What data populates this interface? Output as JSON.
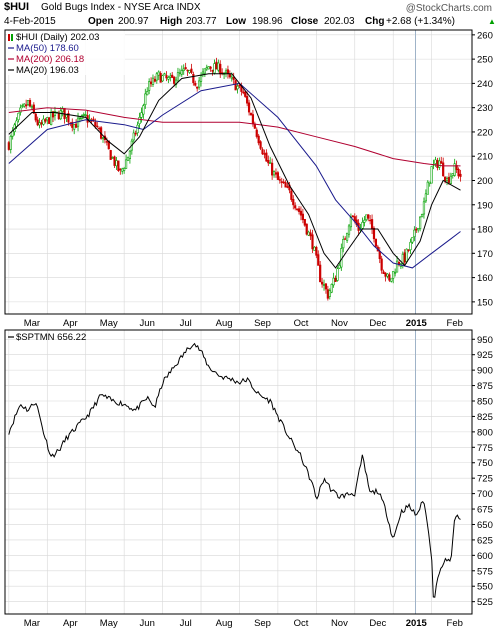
{
  "header": {
    "symbol": "$HUI",
    "name": "Gold Bugs Index - NYSE Arca INDX",
    "watermark": "@StockCharts.com",
    "date": "4-Feb-2015",
    "open_label": "Open",
    "open": "200.97",
    "high_label": "High",
    "high": "203.77",
    "low_label": "Low",
    "low": "198.96",
    "close_label": "Close",
    "close": "202.03",
    "chg_label": "Chg",
    "chg": "+2.68 (+1.34%)",
    "chg_arrow": "▲"
  },
  "colors": {
    "price_up": "#00a000",
    "price_down": "#cc0000",
    "ma50": "#1a1a8c",
    "ma200": "#b00030",
    "ma20": "#000000",
    "bottom_line": "#000000",
    "grid": "#d8d8d8",
    "cursor": "#9fb3c8"
  },
  "chart_data": [
    {
      "type": "candlestick",
      "legend": [
        {
          "key": "price",
          "label": "$HUI (Daily) 202.03"
        },
        {
          "key": "ma50",
          "label": "MA(50) 178.60"
        },
        {
          "key": "ma200",
          "label": "MA(200) 206.18"
        },
        {
          "key": "ma20",
          "label": "MA(20) 196.03"
        }
      ],
      "legend_placement": "top-left",
      "ylim": [
        145,
        262
      ],
      "y_ticks": [
        150,
        160,
        170,
        180,
        190,
        200,
        210,
        220,
        230,
        240,
        250,
        260
      ],
      "x_labels": [
        {
          "label": "Mar",
          "t": 0.6
        },
        {
          "label": "Apr",
          "t": 1.6
        },
        {
          "label": "May",
          "t": 2.6
        },
        {
          "label": "Jun",
          "t": 3.6
        },
        {
          "label": "Jul",
          "t": 4.6
        },
        {
          "label": "Aug",
          "t": 5.6
        },
        {
          "label": "Sep",
          "t": 6.6
        },
        {
          "label": "Oct",
          "t": 7.6
        },
        {
          "label": "Nov",
          "t": 8.6
        },
        {
          "label": "Dec",
          "t": 9.6
        },
        {
          "label": "2015",
          "t": 10.6,
          "bold": true
        },
        {
          "label": "Feb",
          "t": 11.6
        }
      ],
      "x_range": [
        -0.1,
        12.05
      ],
      "cursor_t": 10.58,
      "grid": true,
      "price_path": [
        [
          0,
          215
        ],
        [
          0.3,
          228
        ],
        [
          0.5,
          232
        ],
        [
          0.8,
          222
        ],
        [
          1.1,
          226
        ],
        [
          1.4,
          228
        ],
        [
          1.7,
          223
        ],
        [
          2.0,
          226
        ],
        [
          2.3,
          222
        ],
        [
          2.6,
          212
        ],
        [
          2.9,
          203
        ],
        [
          3.1,
          210
        ],
        [
          3.4,
          225
        ],
        [
          3.6,
          238
        ],
        [
          3.9,
          243
        ],
        [
          4.2,
          241
        ],
        [
          4.6,
          245
        ],
        [
          4.9,
          240
        ],
        [
          5.2,
          247
        ],
        [
          5.5,
          246
        ],
        [
          5.8,
          241
        ],
        [
          6.1,
          236
        ],
        [
          6.4,
          222
        ],
        [
          6.7,
          208
        ],
        [
          7.0,
          200
        ],
        [
          7.3,
          195
        ],
        [
          7.6,
          186
        ],
        [
          7.9,
          174
        ],
        [
          8.1,
          160
        ],
        [
          8.3,
          153
        ],
        [
          8.5,
          160
        ],
        [
          8.7,
          174
        ],
        [
          8.9,
          186
        ],
        [
          9.1,
          180
        ],
        [
          9.3,
          185
        ],
        [
          9.5,
          178
        ],
        [
          9.7,
          165
        ],
        [
          9.9,
          158
        ],
        [
          10.1,
          166
        ],
        [
          10.3,
          168
        ],
        [
          10.5,
          175
        ],
        [
          10.8,
          190
        ],
        [
          11.0,
          205
        ],
        [
          11.2,
          208
        ],
        [
          11.4,
          200
        ],
        [
          11.6,
          205
        ],
        [
          11.75,
          202
        ]
      ],
      "ma200_path": [
        [
          0,
          228
        ],
        [
          1,
          230
        ],
        [
          2,
          229
        ],
        [
          3,
          226
        ],
        [
          4,
          224
        ],
        [
          5,
          224
        ],
        [
          6,
          224
        ],
        [
          7,
          222
        ],
        [
          8,
          218
        ],
        [
          9,
          214
        ],
        [
          10,
          209
        ],
        [
          10.8,
          207
        ],
        [
          11.3,
          206
        ],
        [
          11.75,
          206
        ]
      ],
      "ma50_path": [
        [
          0,
          207
        ],
        [
          1,
          221
        ],
        [
          2,
          225
        ],
        [
          3,
          223
        ],
        [
          3.5,
          221
        ],
        [
          4,
          227
        ],
        [
          5,
          237
        ],
        [
          6,
          240
        ],
        [
          7,
          226
        ],
        [
          8,
          206
        ],
        [
          8.5,
          192
        ],
        [
          9,
          183
        ],
        [
          9.5,
          173
        ],
        [
          10,
          166
        ],
        [
          10.5,
          164
        ],
        [
          11,
          170
        ],
        [
          11.5,
          176
        ],
        [
          11.75,
          179
        ]
      ],
      "ma20_path": [
        [
          0,
          219
        ],
        [
          0.6,
          228
        ],
        [
          1.2,
          228
        ],
        [
          2.0,
          226
        ],
        [
          2.6,
          216
        ],
        [
          3.0,
          211
        ],
        [
          3.4,
          218
        ],
        [
          3.9,
          233
        ],
        [
          4.5,
          242
        ],
        [
          5.2,
          244
        ],
        [
          5.8,
          244
        ],
        [
          6.3,
          234
        ],
        [
          6.8,
          214
        ],
        [
          7.3,
          198
        ],
        [
          7.8,
          186
        ],
        [
          8.2,
          170
        ],
        [
          8.5,
          164
        ],
        [
          8.8,
          171
        ],
        [
          9.2,
          180
        ],
        [
          9.6,
          180
        ],
        [
          10.0,
          170
        ],
        [
          10.3,
          165
        ],
        [
          10.7,
          175
        ],
        [
          11.0,
          190
        ],
        [
          11.3,
          200
        ],
        [
          11.75,
          196
        ]
      ]
    },
    {
      "type": "line",
      "legend": [
        {
          "key": "spx",
          "label": "$SPTMN 656.22"
        }
      ],
      "ylim": [
        505,
        965
      ],
      "y_ticks": [
        525,
        550,
        575,
        600,
        625,
        650,
        675,
        700,
        725,
        750,
        775,
        800,
        825,
        850,
        875,
        900,
        925,
        950
      ],
      "x_labels": [
        {
          "label": "Mar",
          "t": 0.6
        },
        {
          "label": "Apr",
          "t": 1.6
        },
        {
          "label": "May",
          "t": 2.6
        },
        {
          "label": "Jun",
          "t": 3.6
        },
        {
          "label": "Jul",
          "t": 4.6
        },
        {
          "label": "Aug",
          "t": 5.6
        },
        {
          "label": "Sep",
          "t": 6.6
        },
        {
          "label": "Oct",
          "t": 7.6
        },
        {
          "label": "Nov",
          "t": 8.6
        },
        {
          "label": "Dec",
          "t": 9.6
        },
        {
          "label": "2015",
          "t": 10.6,
          "bold": true
        },
        {
          "label": "Feb",
          "t": 11.6
        }
      ],
      "x_range": [
        -0.1,
        12.05
      ],
      "cursor_t": 10.58,
      "grid": true,
      "path": [
        [
          0,
          800
        ],
        [
          0.3,
          845
        ],
        [
          0.5,
          835
        ],
        [
          0.7,
          850
        ],
        [
          0.9,
          800
        ],
        [
          1.1,
          760
        ],
        [
          1.3,
          770
        ],
        [
          1.5,
          790
        ],
        [
          1.8,
          810
        ],
        [
          2.1,
          830
        ],
        [
          2.4,
          860
        ],
        [
          2.7,
          850
        ],
        [
          3.0,
          845
        ],
        [
          3.3,
          835
        ],
        [
          3.6,
          855
        ],
        [
          3.8,
          840
        ],
        [
          4.0,
          880
        ],
        [
          4.3,
          905
        ],
        [
          4.6,
          930
        ],
        [
          4.8,
          945
        ],
        [
          5.0,
          930
        ],
        [
          5.2,
          905
        ],
        [
          5.5,
          890
        ],
        [
          5.8,
          885
        ],
        [
          6.0,
          880
        ],
        [
          6.2,
          885
        ],
        [
          6.5,
          860
        ],
        [
          6.8,
          850
        ],
        [
          7.0,
          825
        ],
        [
          7.3,
          790
        ],
        [
          7.6,
          760
        ],
        [
          7.9,
          715
        ],
        [
          8.0,
          690
        ],
        [
          8.2,
          725
        ],
        [
          8.4,
          705
        ],
        [
          8.6,
          695
        ],
        [
          8.9,
          700
        ],
        [
          9.0,
          700
        ],
        [
          9.2,
          760
        ],
        [
          9.4,
          700
        ],
        [
          9.6,
          705
        ],
        [
          9.8,
          675
        ],
        [
          10.0,
          625
        ],
        [
          10.2,
          670
        ],
        [
          10.4,
          680
        ],
        [
          10.6,
          665
        ],
        [
          10.8,
          690
        ],
        [
          11.0,
          600
        ],
        [
          11.05,
          525
        ],
        [
          11.2,
          575
        ],
        [
          11.4,
          595
        ],
        [
          11.5,
          585
        ],
        [
          11.6,
          665
        ],
        [
          11.75,
          656
        ]
      ]
    }
  ]
}
